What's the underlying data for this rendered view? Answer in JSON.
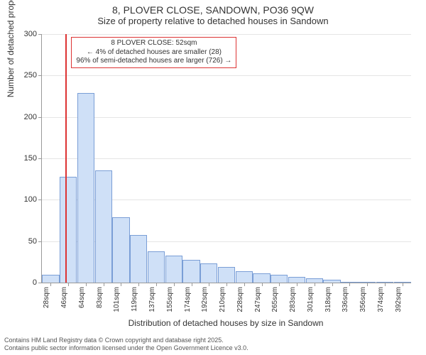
{
  "title": "8, PLOVER CLOSE, SANDOWN, PO36 9QW",
  "subtitle": "Size of property relative to detached houses in Sandown",
  "ylabel": "Number of detached properties",
  "xlabel": "Distribution of detached houses by size in Sandown",
  "chart": {
    "type": "histogram",
    "ylim": [
      0,
      300
    ],
    "ytick_step": 50,
    "yticks": [
      0,
      50,
      100,
      150,
      200,
      250,
      300
    ],
    "grid_color": "#e5e5e5",
    "axis_color": "#999999",
    "background_color": "#ffffff",
    "bar_fill": "#cfe0f7",
    "bar_stroke": "#7a9ed6",
    "bar_width_ratio": 0.9,
    "marker_line_color": "#dd3333",
    "marker_position_index": 1.35,
    "callout_border": "#dd3333",
    "label_fontsize": 12,
    "tick_fontsize": 10,
    "title_fontsize": 14,
    "categories_area": [
      "28sqm",
      "46sqm",
      "64sqm",
      "83sqm",
      "101sqm",
      "119sqm",
      "137sqm",
      "155sqm",
      "174sqm",
      "192sqm",
      "210sqm",
      "228sqm",
      "247sqm",
      "265sqm",
      "283sqm",
      "301sqm",
      "318sqm",
      "336sqm",
      "356sqm",
      "374sqm",
      "392sqm"
    ],
    "values": [
      9,
      127,
      228,
      135,
      78,
      57,
      37,
      32,
      27,
      22,
      18,
      13,
      10,
      9,
      6,
      4,
      3,
      0,
      0,
      0,
      0
    ]
  },
  "callout": {
    "line1": "8 PLOVER CLOSE: 52sqm",
    "line2": "← 4% of detached houses are smaller (28)",
    "line3": "96% of semi-detached houses are larger (726) →"
  },
  "footer": {
    "line1": "Contains HM Land Registry data © Crown copyright and database right 2025.",
    "line2": "Contains public sector information licensed under the Open Government Licence v3.0."
  }
}
